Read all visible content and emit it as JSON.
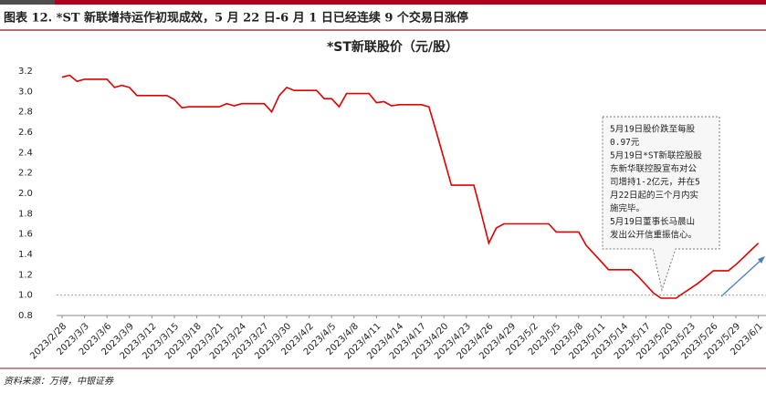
{
  "header": {
    "title": "图表 12. *ST 新联增持运作初现成效，5 月 22 日-6 月 1 日已经连续 9 个交易日涨停"
  },
  "chart_data": {
    "type": "line",
    "title": "*ST新联股价（元/股）",
    "categories": [
      "2023/2/28",
      null,
      null,
      "2023/3/3",
      null,
      null,
      "2023/3/6",
      null,
      null,
      "2023/3/9",
      null,
      null,
      "2023/3/12",
      null,
      null,
      "2023/3/15",
      null,
      null,
      "2023/3/18",
      null,
      null,
      "2023/3/21",
      null,
      null,
      "2023/3/24",
      null,
      null,
      "2023/3/27",
      null,
      null,
      "2023/3/30",
      null,
      null,
      "2023/4/2",
      null,
      null,
      "2023/4/5",
      null,
      null,
      "2023/4/8",
      null,
      null,
      "2023/4/11",
      null,
      null,
      "2023/4/14",
      null,
      null,
      "2023/4/17",
      null,
      null,
      "2023/4/20",
      null,
      null,
      "2023/4/23",
      null,
      null,
      "2023/4/26",
      null,
      null,
      "2023/4/29",
      null,
      null,
      "2023/5/2",
      null,
      null,
      "2023/5/5",
      null,
      null,
      "2023/5/8",
      null,
      null,
      "2023/5/11",
      null,
      null,
      "2023/5/14",
      null,
      null,
      "2023/5/17",
      null,
      null,
      "2023/5/20",
      null,
      null,
      "2023/5/23",
      null,
      null,
      "2023/5/26",
      null,
      null,
      "2023/5/29",
      null,
      null,
      "2023/6/1"
    ],
    "values": [
      3.14,
      3.16,
      3.1,
      3.12,
      3.12,
      3.12,
      3.12,
      3.04,
      3.06,
      3.04,
      2.96,
      2.96,
      2.96,
      2.96,
      2.96,
      2.92,
      2.84,
      2.85,
      2.85,
      2.85,
      2.85,
      2.85,
      2.88,
      2.86,
      2.88,
      2.88,
      2.88,
      2.88,
      2.8,
      2.96,
      3.04,
      3.01,
      3.01,
      3.01,
      3.01,
      2.93,
      2.93,
      2.85,
      2.98,
      2.98,
      2.98,
      2.98,
      2.89,
      2.9,
      2.86,
      2.87,
      2.87,
      2.87,
      2.87,
      2.85,
      2.6,
      2.34,
      2.08,
      2.08,
      2.08,
      2.08,
      1.8,
      1.51,
      1.66,
      1.7,
      1.7,
      1.7,
      1.7,
      1.7,
      1.7,
      1.7,
      1.62,
      1.62,
      1.62,
      1.62,
      1.49,
      1.41,
      1.33,
      1.25,
      1.25,
      1.25,
      1.25,
      1.18,
      1.1,
      1.02,
      0.97,
      0.97,
      0.97,
      1.02,
      1.07,
      1.12,
      1.18,
      1.24,
      1.24,
      1.24,
      1.3,
      1.37,
      1.44,
      1.51
    ],
    "color": "#e00000",
    "ylim": [
      0.8,
      3.2
    ],
    "yticks": [
      0.8,
      1.2,
      1.4,
      1.6,
      1.8,
      2.2,
      2.4,
      2.6,
      2.8,
      3.2,
      {
        "value": 1,
        "label": "1.0"
      },
      {
        "value": 2,
        "label": "2.0"
      },
      {
        "value": 3,
        "label": "3.0"
      }
    ],
    "reference_line": 1,
    "annotation": [
      "5月19日股价跌至每股",
      "0.97元",
      "5月19日*ST新联控股股",
      "东新华联控股宣布对公",
      "司增持1-2亿元，并在5",
      "月22日起的三个月内实",
      "施完毕。",
      "5月19日董事长马晨山",
      "发出公开信重振信心。"
    ]
  },
  "footer": {
    "source": "资料来源：万得，中银证券"
  }
}
